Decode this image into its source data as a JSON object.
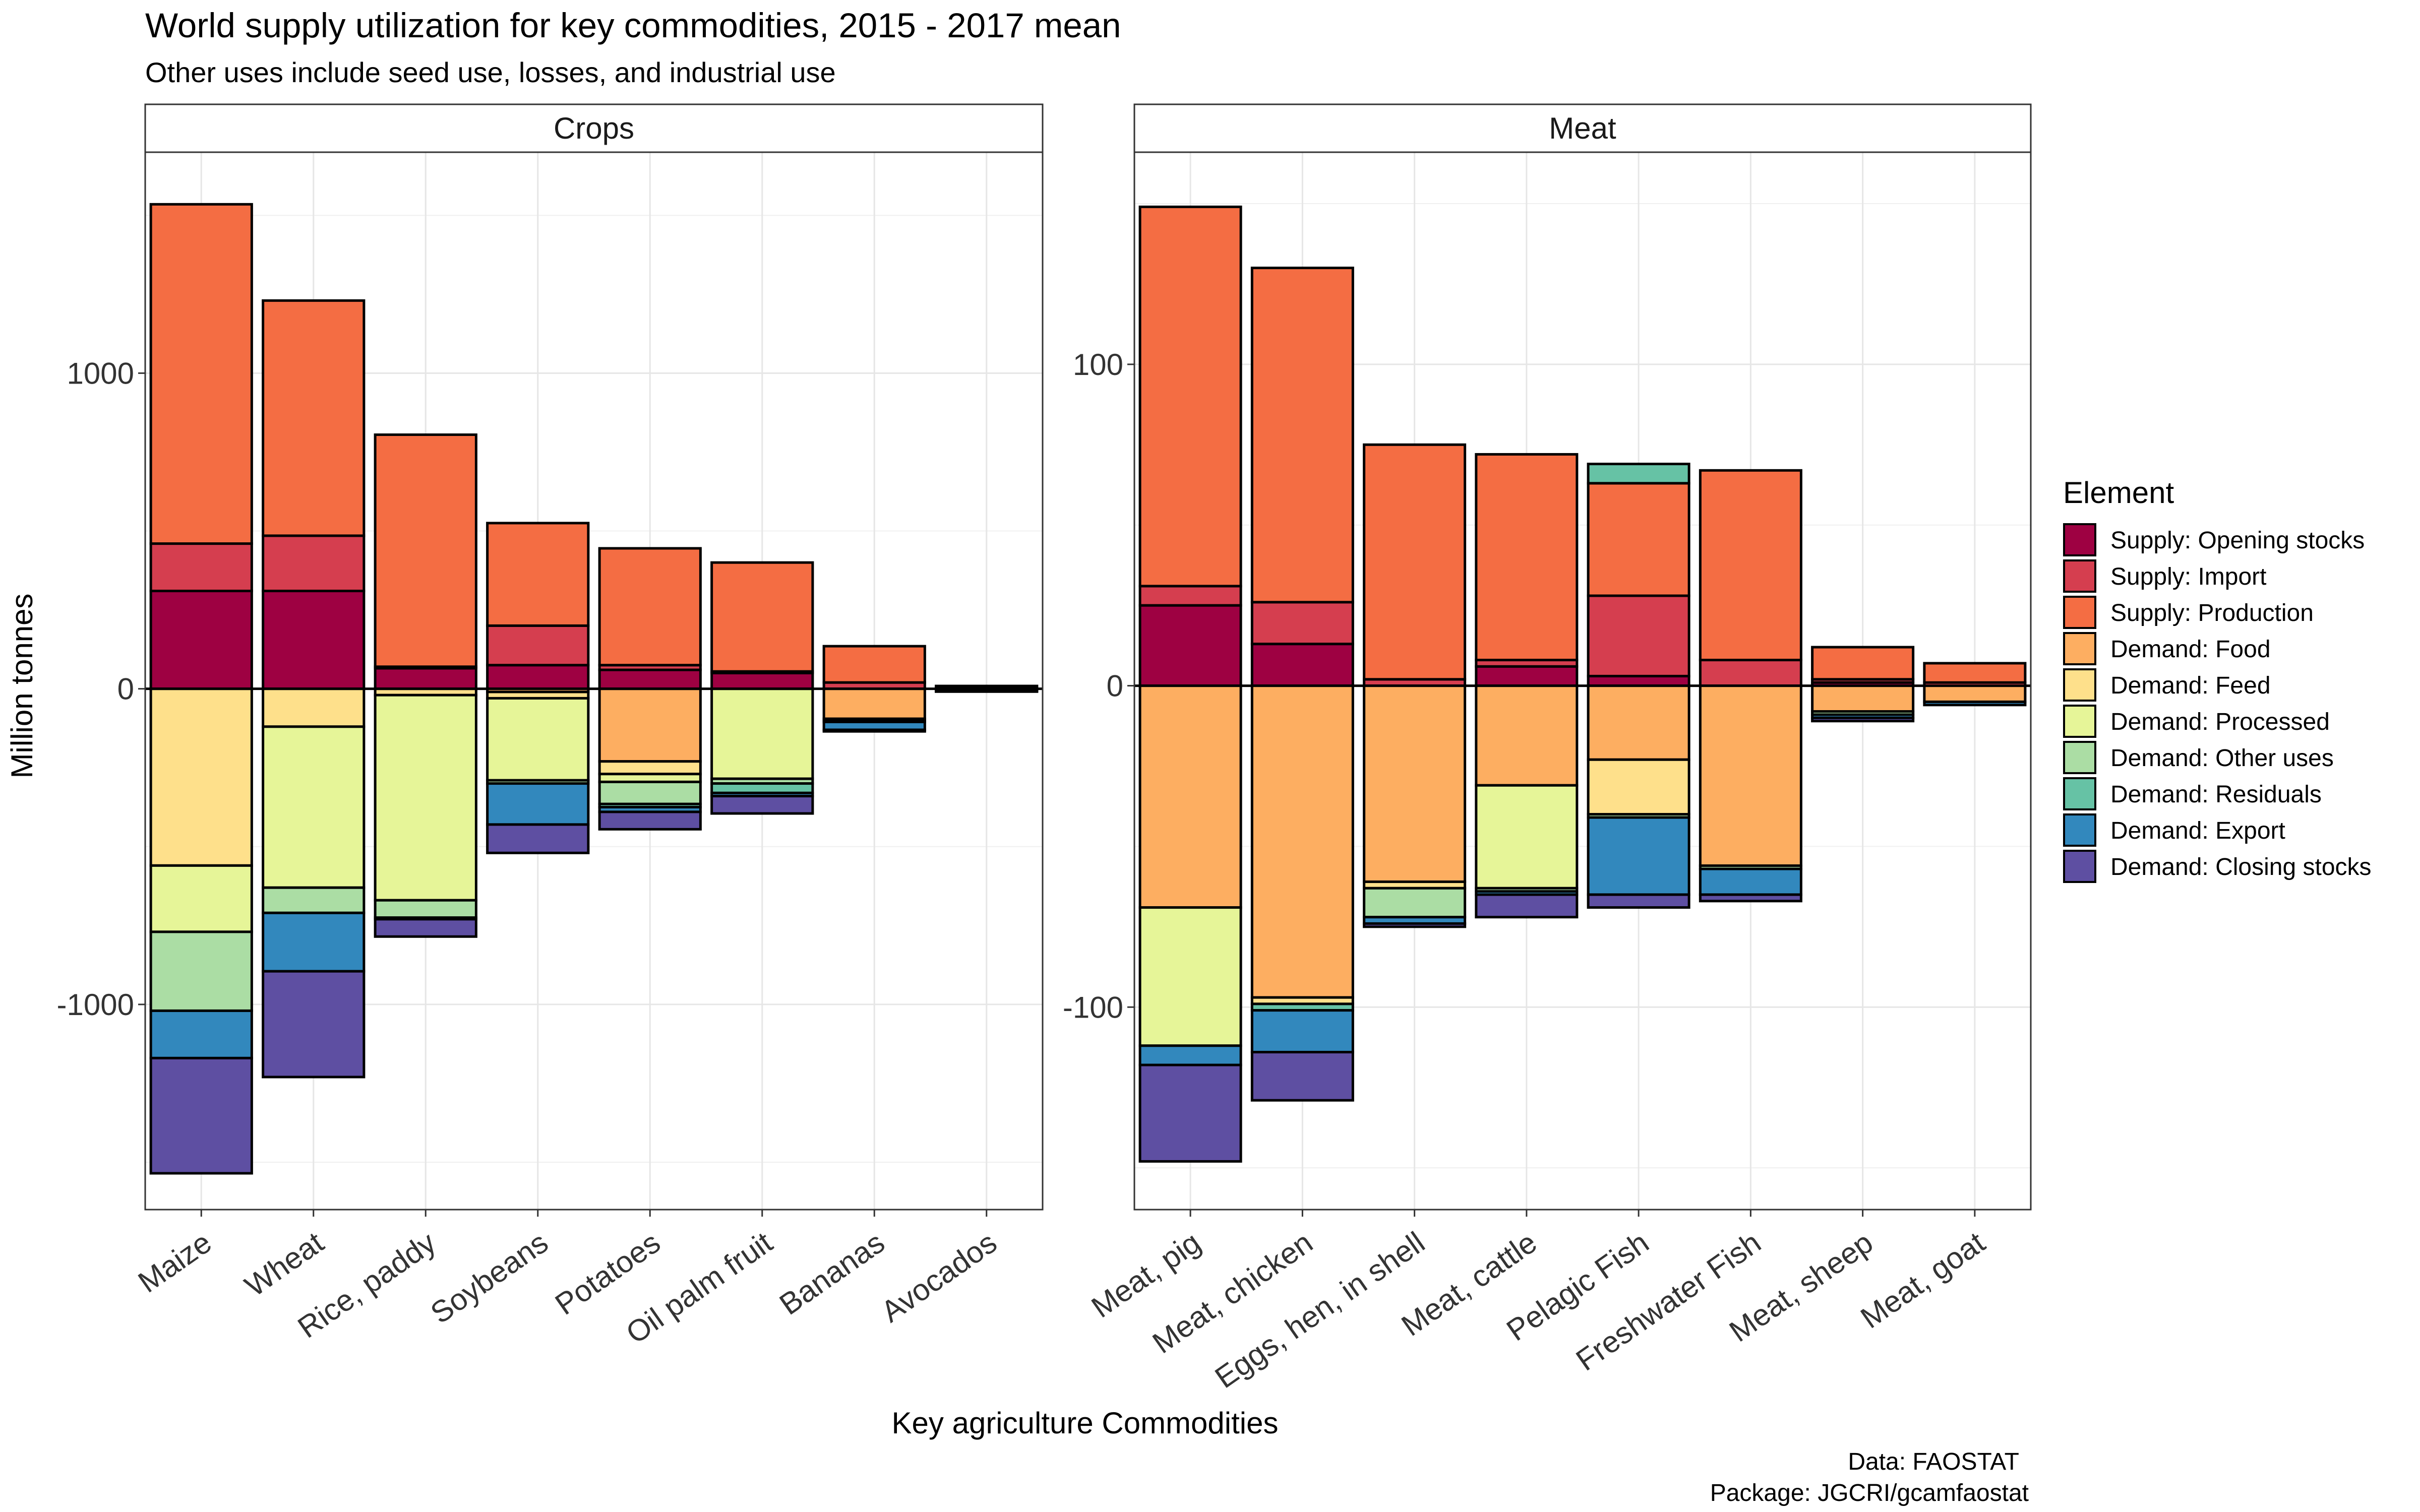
{
  "chart_data": {
    "type": "bar",
    "stacked": true,
    "diverging": true,
    "title": "World supply utilization for key commodities, 2015 - 2017 mean",
    "subtitle": "Other uses include seed use, losses, and industrial use",
    "xlabel": "Key agriculture Commodities",
    "ylabel": "Million tonnes",
    "caption_lines": [
      "Data: FAOSTAT",
      "Package: JGCRI/gcamfaostat"
    ],
    "legend": {
      "title": "Element",
      "position": "right",
      "entries": [
        {
          "name": "Supply: Opening stocks",
          "color": "#9E0142"
        },
        {
          "name": "Supply: Import",
          "color": "#D53E4F"
        },
        {
          "name": "Supply: Production",
          "color": "#F46D43"
        },
        {
          "name": "Demand: Food",
          "color": "#FDAE61"
        },
        {
          "name": "Demand: Feed",
          "color": "#FEE08B"
        },
        {
          "name": "Demand: Processed",
          "color": "#E6F598"
        },
        {
          "name": "Demand: Other uses",
          "color": "#ABDDA4"
        },
        {
          "name": "Demand: Residuals",
          "color": "#66C2A5"
        },
        {
          "name": "Demand: Export",
          "color": "#3288BD"
        },
        {
          "name": "Demand: Closing stocks",
          "color": "#5E4FA2"
        }
      ]
    },
    "grid": true,
    "facets": [
      {
        "label": "Crops",
        "ylim": [
          -1650,
          1700
        ],
        "yticks": [
          -1000,
          0,
          1000
        ],
        "ytick_labels": [
          "-1000",
          "0",
          "1000"
        ],
        "categories": [
          "Maize",
          "Wheat",
          "Rice, paddy",
          "Soybeans",
          "Potatoes",
          "Oil palm fruit",
          "Bananas",
          "Avocados"
        ],
        "series": [
          {
            "name": "Supply: Opening stocks",
            "values": [
              310,
              310,
              65,
              75,
              60,
              50,
              0,
              1
            ]
          },
          {
            "name": "Supply: Import",
            "values": [
              150,
              175,
              5,
              125,
              15,
              5,
              20,
              2
            ]
          },
          {
            "name": "Supply: Production",
            "values": [
              1075,
              745,
              735,
              325,
              370,
              345,
              115,
              6
            ]
          },
          {
            "name": "Demand: Food",
            "values": [
              0,
              0,
              0,
              -10,
              -230,
              0,
              -95,
              -6
            ]
          },
          {
            "name": "Demand: Feed",
            "values": [
              -560,
              -120,
              -20,
              -20,
              -40,
              0,
              -5,
              0
            ]
          },
          {
            "name": "Demand: Processed",
            "values": [
              -210,
              -510,
              -650,
              -260,
              -25,
              -285,
              0,
              0
            ]
          },
          {
            "name": "Demand: Other uses",
            "values": [
              -250,
              -80,
              -55,
              -10,
              -70,
              -15,
              -5,
              0
            ]
          },
          {
            "name": "Demand: Residuals",
            "values": [
              0,
              0,
              0,
              0,
              -10,
              -30,
              0,
              0
            ]
          },
          {
            "name": "Demand: Export",
            "values": [
              -150,
              -185,
              -5,
              -130,
              -15,
              -10,
              -25,
              -2
            ]
          },
          {
            "name": "Demand: Closing stocks",
            "values": [
              -365,
              -335,
              -55,
              -90,
              -55,
              -55,
              -5,
              -1
            ]
          }
        ]
      },
      {
        "label": "Meat",
        "ylim": [
          -163,
          166
        ],
        "yticks": [
          -100,
          0,
          100
        ],
        "ytick_labels": [
          "-100",
          "0",
          "100"
        ],
        "categories": [
          "Meat, pig",
          "Meat, chicken",
          "Eggs, hen, in shell",
          "Meat, cattle",
          "Pelagic Fish",
          "Freshwater Fish",
          "Meat, sheep",
          "Meat, goat"
        ],
        "series": [
          {
            "name": "Supply: Opening stocks",
            "values": [
              25,
              13,
              0,
              6,
              3,
              0,
              1,
              0
            ]
          },
          {
            "name": "Supply: Import",
            "values": [
              6,
              13,
              2,
              2,
              25,
              8,
              1,
              1
            ]
          },
          {
            "name": "Supply: Production",
            "values": [
              118,
              104,
              73,
              64,
              35,
              59,
              10,
              6
            ]
          },
          {
            "name": "Demand: Food",
            "values": [
              -69,
              -97,
              -61,
              -31,
              -23,
              -56,
              -8,
              -5
            ]
          },
          {
            "name": "Demand: Feed",
            "values": [
              0,
              -2,
              -2,
              0,
              -17,
              0,
              0,
              0
            ]
          },
          {
            "name": "Demand: Processed",
            "values": [
              -43,
              0,
              0,
              -32,
              0,
              0,
              0,
              0
            ]
          },
          {
            "name": "Demand: Other uses",
            "values": [
              0,
              0,
              -9,
              -1,
              -1,
              -1,
              -1,
              0
            ]
          },
          {
            "name": "Demand: Residuals",
            "values": [
              0,
              -2,
              0,
              0,
              6,
              0,
              0,
              0
            ]
          },
          {
            "name": "Demand: Export",
            "values": [
              -6,
              -13,
              -2,
              -1,
              -24,
              -8,
              -1,
              -1
            ]
          },
          {
            "name": "Demand: Closing stocks",
            "values": [
              -30,
              -15,
              -1,
              -7,
              -4,
              -2,
              -1,
              0
            ]
          }
        ]
      }
    ]
  }
}
